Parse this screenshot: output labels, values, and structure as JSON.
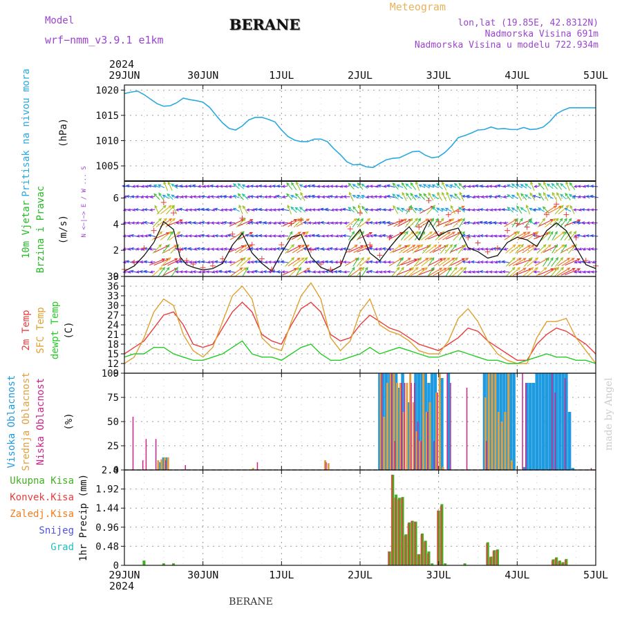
{
  "header": {
    "model_label": "Model",
    "model_name": "wrf−nmm_v3.9.1  e1km",
    "station": "BERANE",
    "title": "Meteogram",
    "coords": "lon,lat (19.85E, 42.8312N)",
    "elevation": "Nadmorska Visina 691m",
    "model_elevation": "Nadmorska Visina u modelu 722.934m",
    "credit": "made by Angel",
    "footer_station": "BERANE"
  },
  "time_axis": {
    "year": "2024",
    "ticks": [
      "29JUN",
      "30JUN",
      "1JUL",
      "2JUL",
      "3JUL",
      "4JUL",
      "5JUL"
    ],
    "range_hours": [
      0,
      144
    ]
  },
  "colors": {
    "pressure": "#29a8e0",
    "wind_label": "#22bb22",
    "wind_units": "#9a44d0",
    "temp2m": "#e83c3c",
    "sfc": "#e0a030",
    "dew": "#22cc22",
    "high_cloud": "#1e9be0",
    "mid_cloud": "#e0a040",
    "low_cloud": "#d0208a",
    "total_precip": "#40b020",
    "conv_precip": "#e83c3c",
    "frz_precip": "#f07d20",
    "snow": "#5050e0",
    "hail": "#20c0c0",
    "header_purple": "#9a44d0",
    "header_orange": "#e6b35a"
  },
  "chart_data": [
    {
      "type": "line",
      "id": "pressure",
      "ylabel": [
        "Pritisak na nivou mora",
        "(hPa)"
      ],
      "ylim": [
        1002,
        1021
      ],
      "yticks": [
        1005,
        1010,
        1015,
        1020
      ],
      "grid": true,
      "series": [
        {
          "x": [
            0,
            2,
            4,
            6,
            8,
            10,
            12,
            14,
            16,
            18,
            20,
            22,
            24,
            26,
            28,
            30,
            32,
            34,
            36,
            38,
            40,
            42,
            44,
            46,
            48,
            50,
            52,
            54,
            56,
            58,
            60,
            62,
            64,
            66,
            68,
            70,
            72,
            74,
            76,
            78,
            80,
            82,
            84,
            86,
            88,
            90,
            92,
            94,
            96,
            98,
            100,
            102,
            104,
            106,
            108,
            110,
            112,
            114,
            116,
            118,
            120,
            122,
            124,
            126,
            128,
            130,
            132,
            134,
            136,
            138,
            140,
            142,
            144
          ],
          "y": [
            1019.3,
            1019.6,
            1019.8,
            1019.1,
            1018.2,
            1017.3,
            1016.8,
            1016.9,
            1017.5,
            1018.4,
            1018.1,
            1017.9,
            1017.6,
            1016.6,
            1015.0,
            1013.5,
            1012.4,
            1012.1,
            1012.9,
            1014.1,
            1014.6,
            1014.6,
            1014.2,
            1013.7,
            1012.1,
            1010.8,
            1010.1,
            1009.8,
            1009.8,
            1010.3,
            1010.3,
            1009.8,
            1008.4,
            1007.2,
            1005.8,
            1005.2,
            1005.3,
            1004.8,
            1004.7,
            1005.5,
            1006.2,
            1006.5,
            1006.6,
            1007.2,
            1007.8,
            1007.9,
            1007.1,
            1006.6,
            1006.8,
            1007.7,
            1009.0,
            1010.6,
            1011.0,
            1011.5,
            1012.1,
            1012.2,
            1012.7,
            1012.3,
            1012.4,
            1012.2,
            1012.2,
            1012.6,
            1012.2,
            1012.3,
            1012.7,
            1013.8,
            1015.3,
            1016.0,
            1016.5,
            1016.5,
            1016.5,
            1016.5,
            1016.5
          ]
        }
      ]
    },
    {
      "type": "line",
      "id": "wind",
      "ylabel": [
        "10m Vjetar",
        "Brzina i Pravac",
        "(m/s)"
      ],
      "compass": "N <−|−> E / W ... S",
      "ylim": [
        0,
        7.3
      ],
      "yticks": [
        0,
        2,
        4,
        6
      ],
      "series": [
        {
          "name": "speed",
          "x": [
            0,
            3,
            6,
            9,
            12,
            15,
            17,
            19,
            21,
            24,
            27,
            30,
            33,
            36,
            39,
            42,
            45,
            48,
            51,
            54,
            57,
            60,
            63,
            66,
            69,
            72,
            75,
            78,
            81,
            84,
            87,
            90,
            93,
            96,
            99,
            102,
            105,
            108,
            111,
            114,
            117,
            120,
            123,
            126,
            129,
            132,
            135,
            138,
            141,
            144
          ],
          "y": [
            0.4,
            0.8,
            1.6,
            2.6,
            4.2,
            3.6,
            1.5,
            0.9,
            0.7,
            0.5,
            0.6,
            1.0,
            2.4,
            3.3,
            1.8,
            1.0,
            0.4,
            1.8,
            3.0,
            3.2,
            1.5,
            0.7,
            0.4,
            0.8,
            2.7,
            3.6,
            1.8,
            1.2,
            2.2,
            3.1,
            3.8,
            2.8,
            4.3,
            3.1,
            3.5,
            3.7,
            2.2,
            1.9,
            1.4,
            1.6,
            2.6,
            3.0,
            2.8,
            2.3,
            3.5,
            4.1,
            3.5,
            2.2,
            0.9,
            0.6
          ]
        }
      ]
    },
    {
      "type": "line",
      "id": "temperature",
      "ylabel_lines": [
        "2m Temp",
        "SFC Temp",
        "dewpt Temp",
        "(C)"
      ],
      "ylim": [
        9,
        39
      ],
      "yticks": [
        9,
        12,
        15,
        18,
        21,
        24,
        27,
        30,
        33,
        36,
        39
      ],
      "series": [
        {
          "name": "2m Temp",
          "x": [
            0,
            3,
            6,
            9,
            12,
            15,
            18,
            21,
            24,
            27,
            30,
            33,
            36,
            39,
            42,
            45,
            48,
            51,
            54,
            57,
            60,
            63,
            66,
            69,
            72,
            75,
            78,
            81,
            84,
            87,
            90,
            93,
            96,
            99,
            102,
            105,
            108,
            111,
            114,
            117,
            120,
            123,
            126,
            129,
            132,
            135,
            138,
            141,
            144
          ],
          "y": [
            15,
            17,
            19,
            23,
            27,
            28,
            24,
            18,
            17,
            18,
            23,
            28,
            31,
            28,
            21,
            19,
            18,
            24,
            29,
            31,
            28,
            21,
            19,
            20,
            24,
            27,
            25,
            23,
            22,
            20,
            18,
            17,
            16,
            18,
            20,
            23,
            22,
            19,
            17,
            15,
            13,
            13,
            18,
            21,
            23,
            22,
            20,
            18,
            15
          ]
        },
        {
          "name": "SFC Temp",
          "x": [
            0,
            3,
            6,
            9,
            12,
            15,
            18,
            21,
            24,
            27,
            30,
            33,
            36,
            39,
            42,
            45,
            48,
            51,
            54,
            57,
            60,
            63,
            66,
            69,
            72,
            75,
            78,
            81,
            84,
            87,
            90,
            93,
            96,
            99,
            102,
            105,
            108,
            111,
            114,
            117,
            120,
            123,
            126,
            129,
            132,
            135,
            138,
            141,
            144
          ],
          "y": [
            12,
            14,
            20,
            28,
            32,
            30,
            21,
            16,
            14,
            17,
            25,
            33,
            36,
            32,
            20,
            17,
            16,
            25,
            33,
            37,
            32,
            20,
            16,
            19,
            28,
            32,
            24,
            22,
            21,
            19,
            16,
            15,
            15,
            19,
            26,
            29,
            25,
            19,
            15,
            13,
            12,
            12,
            20,
            25,
            25,
            26,
            20,
            16,
            12
          ]
        },
        {
          "name": "dewpt Temp",
          "x": [
            0,
            3,
            6,
            9,
            12,
            15,
            18,
            21,
            24,
            27,
            30,
            33,
            36,
            39,
            42,
            45,
            48,
            51,
            54,
            57,
            60,
            63,
            66,
            69,
            72,
            75,
            78,
            81,
            84,
            87,
            90,
            93,
            96,
            99,
            102,
            105,
            108,
            111,
            114,
            117,
            120,
            123,
            126,
            129,
            132,
            135,
            138,
            141,
            144
          ],
          "y": [
            14,
            15,
            15,
            17,
            17,
            15,
            14,
            13,
            13,
            14,
            15,
            17,
            19,
            15,
            14,
            14,
            13,
            15,
            17,
            18,
            15,
            13,
            13,
            14,
            15,
            17,
            15,
            16,
            17,
            16,
            15,
            14,
            14,
            15,
            16,
            15,
            14,
            13,
            13,
            12,
            12,
            13,
            14,
            15,
            14,
            14,
            13,
            13,
            12
          ]
        }
      ]
    },
    {
      "type": "bar",
      "id": "cloud",
      "ylabel_lines": [
        "Visoka Oblacnost",
        "Srednja Oblacnost",
        "Niska Oblacnost",
        "(%)"
      ],
      "ylim": [
        0,
        100
      ],
      "yticks": [
        0,
        25,
        50,
        75,
        100
      ],
      "series": [
        {
          "name": "Visoka Oblacnost",
          "x": [
            11,
            12,
            13,
            78,
            79,
            80,
            81,
            82,
            83,
            84,
            85,
            87,
            89,
            90,
            91,
            92,
            93,
            94,
            95,
            97,
            99,
            110,
            111,
            112,
            113,
            114,
            115,
            116,
            117,
            118,
            119,
            122,
            123,
            124,
            125,
            126,
            127,
            128,
            129,
            130,
            131,
            132,
            133,
            134,
            135,
            136,
            137
          ],
          "y": [
            8,
            13,
            13,
            100,
            100,
            100,
            100,
            100,
            100,
            85,
            100,
            70,
            100,
            100,
            100,
            100,
            90,
            100,
            100,
            95,
            100,
            100,
            100,
            100,
            100,
            100,
            100,
            100,
            100,
            100,
            100,
            3,
            90,
            90,
            90,
            100,
            100,
            100,
            100,
            100,
            100,
            100,
            100,
            100,
            100,
            60,
            2
          ]
        },
        {
          "name": "Srednja Oblacnost",
          "x": [
            10,
            11,
            12,
            13,
            39,
            61,
            62,
            78,
            79,
            80,
            81,
            82,
            83,
            84,
            85,
            86,
            87,
            88,
            89,
            90,
            91,
            92,
            93,
            95,
            96,
            97,
            110,
            111,
            112,
            113,
            114,
            115,
            116,
            117,
            118
          ],
          "y": [
            10,
            11,
            13,
            13,
            2,
            10,
            7,
            100,
            55,
            90,
            100,
            100,
            90,
            90,
            60,
            90,
            100,
            70,
            40,
            30,
            100,
            60,
            70,
            80,
            100,
            3,
            75,
            100,
            100,
            100,
            60,
            50,
            60,
            100,
            10
          ]
        },
        {
          "name": "Niska Oblacnost",
          "x": [
            2,
            5,
            6,
            9,
            12,
            18,
            40,
            61,
            78,
            81,
            82,
            84,
            85,
            87,
            88,
            89,
            90,
            92,
            94,
            95,
            98,
            99,
            104,
            110,
            121,
            122,
            130,
            131,
            134,
            142
          ],
          "y": [
            55,
            10,
            32,
            32,
            10,
            5,
            8,
            8,
            100,
            100,
            30,
            90,
            90,
            90,
            90,
            50,
            30,
            60,
            30,
            80,
            100,
            90,
            85,
            30,
            100,
            90,
            100,
            80,
            95,
            2
          ]
        }
      ]
    },
    {
      "type": "bar",
      "id": "precip",
      "ylabel_lines": [
        "Ukupna Kisa",
        "Konvek.Kisa",
        "Zaledj.Kisa",
        "Snijeg",
        "Grad",
        "1hr Precip (mm)"
      ],
      "ylim": [
        0,
        2.4
      ],
      "yticks": [
        0,
        0.48,
        0.96,
        1.44,
        1.92,
        2.4
      ],
      "yticklabels": [
        "0",
        "0.48",
        "0.96",
        "1.44",
        "1.92",
        "2.4"
      ],
      "series": [
        {
          "name": "Ukupna Kisa",
          "x": [
            6,
            12,
            15,
            81,
            82,
            83,
            84,
            85,
            86,
            87,
            88,
            89,
            90,
            91,
            92,
            93,
            94,
            96,
            97,
            98,
            104,
            111,
            112,
            113,
            114,
            131,
            132,
            133,
            134,
            135
          ],
          "y": [
            0.12,
            0.05,
            0.05,
            0.35,
            2.28,
            1.78,
            1.7,
            1.72,
            0.78,
            1.08,
            1.12,
            1.1,
            0.28,
            0.8,
            0.62,
            0.35,
            0.05,
            1.38,
            1.54,
            0.05,
            0.05,
            0.58,
            0.22,
            0.38,
            0.4,
            0.15,
            0.2,
            0.12,
            0.08,
            0.16
          ]
        },
        {
          "name": "Konvek.Kisa",
          "x": [
            81,
            82,
            83,
            84,
            85,
            86,
            87,
            88,
            89,
            90,
            91,
            92,
            93,
            96,
            97,
            111,
            112,
            113,
            114,
            131,
            132,
            133,
            134,
            135
          ],
          "y": [
            0.35,
            2.28,
            1.7,
            1.66,
            1.7,
            0.75,
            1.05,
            1.12,
            1.1,
            0.28,
            0.78,
            0.6,
            0.3,
            1.38,
            1.5,
            0.55,
            0.2,
            0.36,
            0.38,
            0.12,
            0.18,
            0.1,
            0.06,
            0.14
          ]
        }
      ]
    }
  ]
}
